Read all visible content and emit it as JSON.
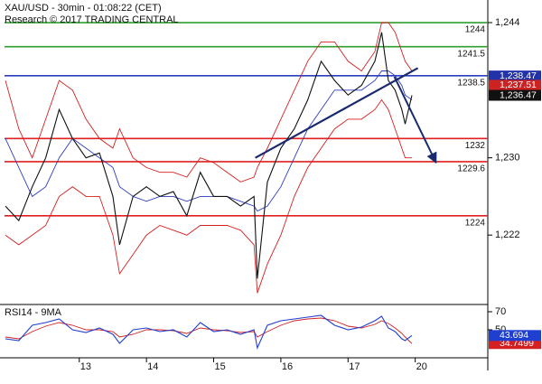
{
  "chart_data": [
    {
      "type": "line",
      "title": "XAU/USD - 30min - 01:08:22 (CET)",
      "subtitle": "Research © 2017 TRADING CENTRAL",
      "xlim": [
        -0.18,
        7.08
      ],
      "ylim": [
        1215,
        1246.34
      ],
      "yticks": [
        {
          "value": 1244,
          "label": "1,244"
        },
        {
          "value": 1230,
          "label": "1,230"
        },
        {
          "value": 1222,
          "label": "1,222"
        }
      ],
      "x": [
        -0.1,
        0.1,
        0.3,
        0.5,
        0.7,
        0.9,
        1.1,
        1.3,
        1.5,
        1.6,
        1.8,
        2.0,
        2.2,
        2.4,
        2.6,
        2.8,
        3.0,
        3.2,
        3.4,
        3.6,
        3.65,
        3.8,
        4.0,
        4.2,
        4.4,
        4.6,
        4.8,
        5.0,
        5.2,
        5.4,
        5.5,
        5.6,
        5.7,
        5.8,
        5.85,
        5.95
      ],
      "series": [
        {
          "color": "#d42020",
          "values": [
            1238,
            1233,
            1230,
            1234,
            1238,
            1237,
            1234,
            1232,
            1231,
            1233,
            1230,
            1229,
            1228.5,
            1228.5,
            1228,
            1230,
            1229.5,
            1228.5,
            1227.5,
            1228,
            1229,
            1231,
            1234,
            1237,
            1240,
            1242,
            1242,
            1240,
            1239,
            1241,
            1244,
            1244,
            1243,
            1241,
            1240,
            1239
          ]
        },
        {
          "color": "#d42020",
          "values": [
            1222,
            1221,
            1222,
            1223,
            1226,
            1227,
            1226,
            1226,
            1222,
            1218,
            1220,
            1222,
            1223,
            1222.5,
            1222,
            1223,
            1223,
            1223,
            1222.5,
            1221,
            1216,
            1219,
            1222,
            1226,
            1229,
            1231,
            1233,
            1234,
            1234,
            1235,
            1236,
            1235,
            1233,
            1231,
            1230,
            1230
          ]
        },
        {
          "color": "#2a3fbf",
          "values": [
            1232,
            1229,
            1226,
            1227,
            1230,
            1232,
            1231,
            1230,
            1229,
            1227,
            1226,
            1225.5,
            1226,
            1226,
            1225.5,
            1226,
            1226,
            1226,
            1225.5,
            1225,
            1224.5,
            1225,
            1227,
            1230,
            1233,
            1235,
            1237,
            1237,
            1237,
            1238,
            1239,
            1239,
            1238.5,
            1237.5,
            1236.5,
            1236
          ]
        },
        {
          "color": "#111111",
          "values": [
            1225,
            1223.5,
            1227,
            1230,
            1235,
            1232,
            1230,
            1230.5,
            1226,
            1221,
            1226,
            1227,
            1226,
            1226.5,
            1224,
            1228.5,
            1226,
            1226,
            1225,
            1226,
            1217.5,
            1227.5,
            1231,
            1233,
            1236,
            1240,
            1238,
            1236.5,
            1237.5,
            1240,
            1243,
            1238,
            1237,
            1235,
            1233.5,
            1236.47
          ]
        }
      ],
      "levels": [
        {
          "value": 1244,
          "color": "#2e9e2e"
        },
        {
          "value": 1241.5,
          "color": "#2e9e2e"
        },
        {
          "value": 1238.5,
          "color": "#2a3fbf"
        },
        {
          "value": 1232,
          "color": "#e02020"
        },
        {
          "value": 1229.6,
          "color": "#e02020"
        },
        {
          "value": 1224,
          "color": "#e02020"
        }
      ],
      "trendline": {
        "color": "#1a2a6e",
        "x": [
          3.62,
          6.04
        ],
        "values": [
          1230,
          1239.3
        ]
      },
      "arrow": {
        "color": "#1a2a6e",
        "x": [
          5.69,
          6.31
        ],
        "values": [
          1238.4,
          1229.5
        ]
      },
      "price_tags": [
        {
          "value": 1238.47,
          "label": "1,238.47",
          "color": "#2233aa"
        },
        {
          "value": 1237.51,
          "label": "1,237.51",
          "color": "#cc2222"
        },
        {
          "value": 1236.47,
          "label": "1,236.47",
          "color": "#111111"
        }
      ]
    },
    {
      "type": "line",
      "title": "RSI14 - 9MA",
      "xlim": [
        -0.18,
        7.08
      ],
      "ylim": [
        19,
        77
      ],
      "yticks": [
        70,
        50
      ],
      "xticks": [
        {
          "value": 1,
          "label": "13"
        },
        {
          "value": 2,
          "label": "14"
        },
        {
          "value": 3,
          "label": "15"
        },
        {
          "value": 4,
          "label": "16"
        },
        {
          "value": 5,
          "label": "17"
        },
        {
          "value": 6,
          "label": "20"
        }
      ],
      "x": [
        -0.1,
        0.1,
        0.3,
        0.5,
        0.7,
        0.9,
        1.1,
        1.3,
        1.5,
        1.6,
        1.8,
        2.0,
        2.2,
        2.4,
        2.6,
        2.8,
        3.0,
        3.2,
        3.4,
        3.6,
        3.65,
        3.8,
        4.0,
        4.2,
        4.4,
        4.6,
        4.8,
        5.0,
        5.2,
        5.4,
        5.5,
        5.6,
        5.7,
        5.8,
        5.85,
        5.95
      ],
      "series": [
        {
          "color": "#d42020",
          "values": [
            42,
            40,
            48,
            54,
            58,
            55,
            50,
            50,
            48,
            42,
            45,
            50,
            50,
            49,
            46,
            52,
            50,
            49,
            47,
            48,
            42,
            48,
            55,
            60,
            62,
            63,
            60,
            54,
            52,
            56,
            60,
            57,
            52,
            46,
            42,
            34.7499
          ]
        },
        {
          "color": "#1f3fd0",
          "values": [
            40,
            38,
            55,
            58,
            62,
            50,
            47,
            52,
            45,
            35,
            50,
            52,
            48,
            50,
            42,
            58,
            48,
            50,
            45,
            50,
            30,
            55,
            60,
            62,
            64,
            66,
            55,
            50,
            53,
            60,
            65,
            52,
            48,
            40,
            38,
            43.694
          ]
        }
      ]
    }
  ]
}
